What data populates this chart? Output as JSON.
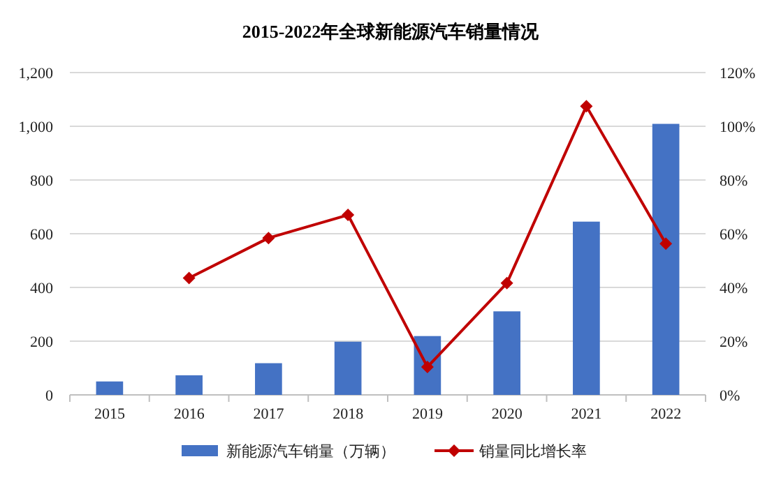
{
  "chart_data": {
    "type": "bar",
    "title": "2015-2022年全球新能源汽车销量情况",
    "categories": [
      "2015",
      "2016",
      "2017",
      "2018",
      "2019",
      "2020",
      "2021",
      "2022"
    ],
    "series": [
      {
        "name": "新能源汽车销量（万辆）",
        "color": "#4472c4",
        "values": [
          50,
          73,
          118,
          198,
          219,
          311,
          645,
          1009
        ]
      },
      {
        "name": "销量同比增长率",
        "type": "line",
        "axis": "y2",
        "color": "#c00000",
        "marker": "diamond",
        "values": [
          null,
          43.5,
          58.4,
          67,
          10.4,
          41.6,
          107.5,
          56.3
        ]
      }
    ],
    "ylim": [
      0,
      1200
    ],
    "yticks": [
      0,
      200,
      400,
      600,
      800,
      {
        "value": 1000,
        "label": "1,000"
      },
      {
        "value": 1200,
        "label": "1,200"
      }
    ],
    "y2lim": [
      0,
      120
    ],
    "y2ticks": [
      {
        "value": 0,
        "label": "0%"
      },
      {
        "value": 20,
        "label": "20%"
      },
      {
        "value": 40,
        "label": "40%"
      },
      {
        "value": 60,
        "label": "60%"
      },
      {
        "value": 80,
        "label": "80%"
      },
      {
        "value": 100,
        "label": "100%"
      },
      {
        "value": 120,
        "label": "120%"
      }
    ],
    "grid": "y",
    "legend": "bottom"
  }
}
